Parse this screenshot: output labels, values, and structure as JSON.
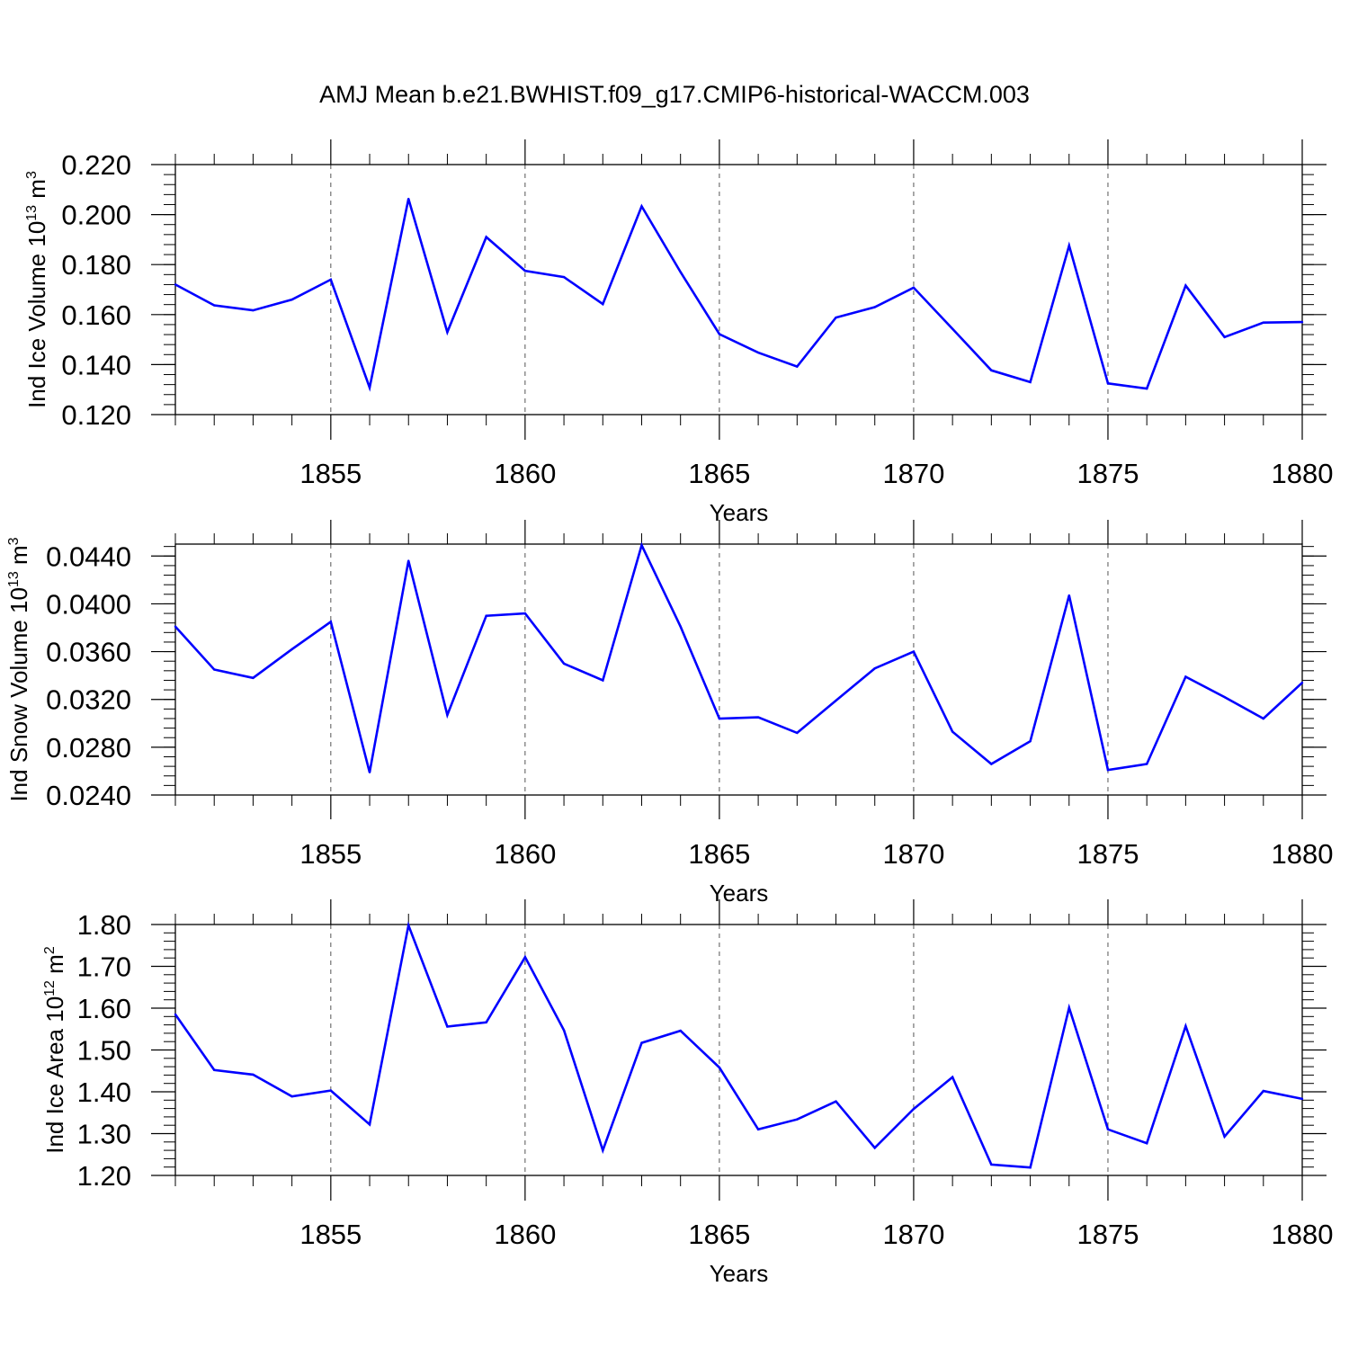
{
  "title": "AMJ Mean b.e21.BWHIST.f09_g17.CMIP6-historical-WACCM.003",
  "series_color": "#0000ff",
  "chart_data": [
    {
      "type": "line",
      "title": "AMJ Mean b.e21.BWHIST.f09_g17.CMIP6-historical-WACCM.003",
      "xlabel": "Years",
      "ylabel": "Ind Ice Volume 10",
      "ylabel_sup": "13",
      "ylabel_unit": "m",
      "ylabel_unit_sup": "3",
      "xlim": [
        1851,
        1880
      ],
      "ylim": [
        0.12,
        0.22
      ],
      "xticks": [
        "1855",
        "1860",
        "1865",
        "1870",
        "1875",
        "1880"
      ],
      "yticks": [
        "0.120",
        "0.140",
        "0.160",
        "0.180",
        "0.200",
        "0.220"
      ],
      "x": [
        1851,
        1852,
        1853,
        1854,
        1855,
        1856,
        1857,
        1858,
        1859,
        1860,
        1861,
        1862,
        1863,
        1864,
        1865,
        1866,
        1867,
        1868,
        1869,
        1870,
        1871,
        1872,
        1873,
        1874,
        1875,
        1876,
        1877,
        1878,
        1879,
        1880
      ],
      "values": [
        0.172,
        0.1637,
        0.1617,
        0.166,
        0.174,
        0.1308,
        0.2063,
        0.153,
        0.191,
        0.1775,
        0.175,
        0.1642,
        0.2033,
        0.177,
        0.1522,
        0.1448,
        0.1392,
        0.1588,
        0.163,
        0.1708,
        0.1543,
        0.1377,
        0.133,
        0.1876,
        0.1325,
        0.1304,
        0.1716,
        0.151,
        0.1568,
        0.157
      ]
    },
    {
      "type": "line",
      "xlabel": "Years",
      "ylabel": "Ind Snow Volume 10",
      "ylabel_sup": "13",
      "ylabel_unit": "m",
      "ylabel_unit_sup": "3",
      "xlim": [
        1851,
        1880
      ],
      "ylim": [
        0.024,
        0.045
      ],
      "xticks": [
        "1855",
        "1860",
        "1865",
        "1870",
        "1875",
        "1880"
      ],
      "yticks": [
        "0.0240",
        "0.0280",
        "0.0320",
        "0.0360",
        "0.0400",
        "0.0440"
      ],
      "x": [
        1851,
        1852,
        1853,
        1854,
        1855,
        1856,
        1857,
        1858,
        1859,
        1860,
        1861,
        1862,
        1863,
        1864,
        1865,
        1866,
        1867,
        1868,
        1869,
        1870,
        1871,
        1872,
        1873,
        1874,
        1875,
        1876,
        1877,
        1878,
        1879,
        1880
      ],
      "values": [
        0.0381,
        0.0345,
        0.0338,
        0.0362,
        0.0385,
        0.0259,
        0.0436,
        0.0307,
        0.039,
        0.0392,
        0.035,
        0.0336,
        0.0449,
        0.0381,
        0.0304,
        0.0305,
        0.0292,
        0.0319,
        0.0346,
        0.036,
        0.0293,
        0.0266,
        0.0285,
        0.0407,
        0.0261,
        0.0266,
        0.0339,
        0.0322,
        0.0304,
        0.0334
      ]
    },
    {
      "type": "line",
      "xlabel": "Years",
      "ylabel": "Ind Ice Area 10",
      "ylabel_sup": "12",
      "ylabel_unit": "m",
      "ylabel_unit_sup": "2",
      "xlim": [
        1851,
        1880
      ],
      "ylim": [
        1.2,
        1.8
      ],
      "xticks": [
        "1855",
        "1860",
        "1865",
        "1870",
        "1875",
        "1880"
      ],
      "yticks": [
        "1.20",
        "1.30",
        "1.40",
        "1.50",
        "1.60",
        "1.70",
        "1.80"
      ],
      "x": [
        1851,
        1852,
        1853,
        1854,
        1855,
        1856,
        1857,
        1858,
        1859,
        1860,
        1861,
        1862,
        1863,
        1864,
        1865,
        1866,
        1867,
        1868,
        1869,
        1870,
        1871,
        1872,
        1873,
        1874,
        1875,
        1876,
        1877,
        1878,
        1879,
        1880
      ],
      "values": [
        1.585,
        1.452,
        1.441,
        1.389,
        1.403,
        1.322,
        1.798,
        1.556,
        1.566,
        1.722,
        1.547,
        1.26,
        1.517,
        1.546,
        1.458,
        1.31,
        1.334,
        1.377,
        1.266,
        1.359,
        1.435,
        1.226,
        1.219,
        1.601,
        1.31,
        1.277,
        1.557,
        1.293,
        1.402,
        1.383
      ]
    }
  ]
}
